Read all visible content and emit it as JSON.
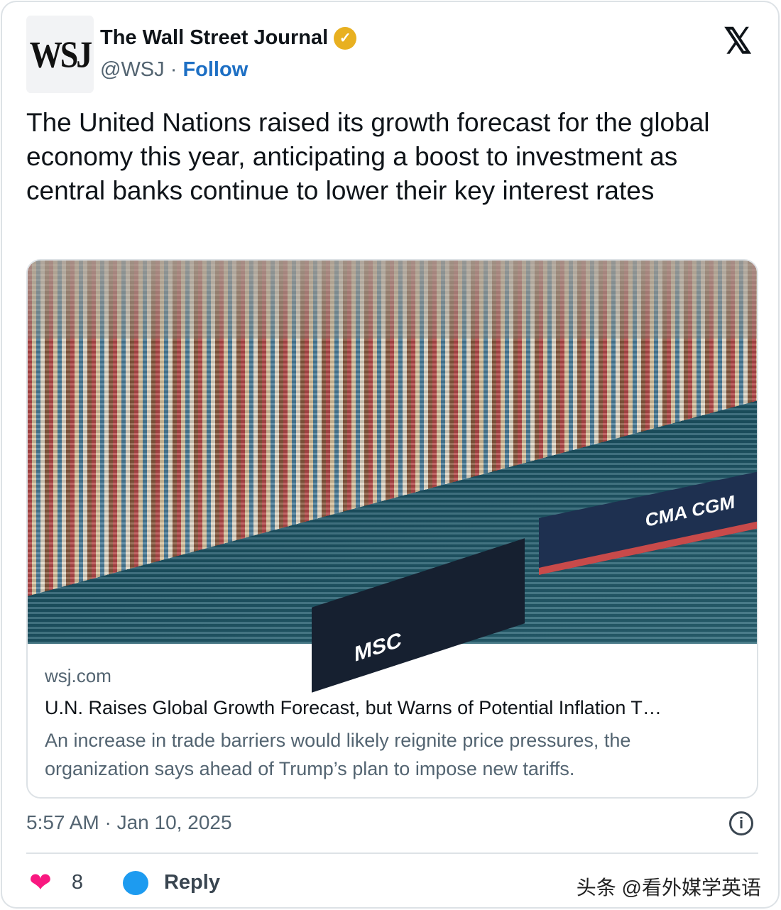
{
  "author": {
    "logo": "WSJ",
    "name": "The Wall Street Journal",
    "handle": "@WSJ",
    "separator": " · ",
    "follow": "Follow",
    "verified_icon": "verified-badge-icon",
    "badge_color": "#e8b020"
  },
  "platform_icon": "x-logo-icon",
  "tweet_text": "The United Nations raised its growth forecast for the global economy this year, anticipating a boost to investment as central banks continue to lower their key interest rates",
  "card": {
    "image_labels": {
      "ship1": "CMA CGM",
      "ship2": "MSC"
    },
    "domain": "wsj.com",
    "title": "U.N. Raises Global Growth Forecast, but Warns of Potential Inflation T…",
    "description": "An increase in trade barriers would likely reignite price pressures, the organization says ahead of Trump’s plan to impose new tariffs."
  },
  "timestamp": "5:57 AM · Jan 10, 2025",
  "actions": {
    "likes": "8",
    "reply": "Reply"
  },
  "watermark": "头条 @看外媒学英语"
}
